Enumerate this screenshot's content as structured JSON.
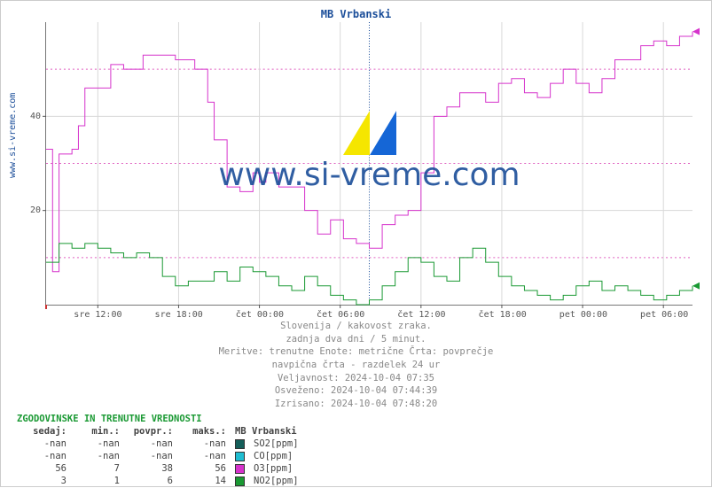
{
  "title": "MB Vrbanski",
  "ylabel": "www.si-vreme.com",
  "watermark_text": "www.si-vreme.com",
  "chart": {
    "type": "line-step",
    "background": "#ffffff",
    "grid_major_color": "#d8d8d8",
    "grid_dash_color": "#e060c0",
    "axis_font_size": 10,
    "axis_color": "#555555",
    "ylim": [
      0,
      60
    ],
    "ytick_major": [
      20,
      40
    ],
    "ytick_dash": [
      10,
      30,
      50
    ],
    "x_labels": [
      "sre 12:00",
      "sre 18:00",
      "čet 00:00",
      "čet 06:00",
      "čet 12:00",
      "čet 18:00",
      "pet 00:00",
      "pet 06:00"
    ],
    "x_positions_pct": [
      8,
      20.5,
      33,
      45.5,
      58,
      70.5,
      83,
      95.5
    ],
    "vline_pct": 50,
    "vline_color": "#1a4d99",
    "series": {
      "o3": {
        "color": "#d633cc",
        "width": 1,
        "points": [
          [
            0,
            33
          ],
          [
            1,
            7
          ],
          [
            2,
            32
          ],
          [
            2.5,
            32
          ],
          [
            4,
            33
          ],
          [
            5,
            38
          ],
          [
            6,
            46
          ],
          [
            9,
            46
          ],
          [
            10,
            51
          ],
          [
            12,
            50
          ],
          [
            15,
            53
          ],
          [
            19,
            53
          ],
          [
            20,
            52
          ],
          [
            22,
            52
          ],
          [
            23,
            50
          ],
          [
            24,
            50
          ],
          [
            25,
            43
          ],
          [
            26,
            35
          ],
          [
            28,
            25
          ],
          [
            30,
            24
          ],
          [
            32,
            28
          ],
          [
            33,
            26
          ],
          [
            34,
            28
          ],
          [
            36,
            25
          ],
          [
            40,
            20
          ],
          [
            42,
            15
          ],
          [
            44,
            18
          ],
          [
            46,
            14
          ],
          [
            48,
            13
          ],
          [
            50,
            12
          ],
          [
            52,
            17
          ],
          [
            54,
            19
          ],
          [
            56,
            20
          ],
          [
            58,
            28
          ],
          [
            60,
            40
          ],
          [
            62,
            42
          ],
          [
            64,
            45
          ],
          [
            66,
            45
          ],
          [
            68,
            43
          ],
          [
            70,
            47
          ],
          [
            72,
            48
          ],
          [
            74,
            45
          ],
          [
            76,
            44
          ],
          [
            78,
            47
          ],
          [
            80,
            50
          ],
          [
            82,
            47
          ],
          [
            84,
            45
          ],
          [
            86,
            48
          ],
          [
            88,
            52
          ],
          [
            90,
            52
          ],
          [
            92,
            55
          ],
          [
            94,
            56
          ],
          [
            96,
            55
          ],
          [
            98,
            57
          ],
          [
            100,
            58
          ]
        ]
      },
      "no2": {
        "color": "#1a9933",
        "width": 1,
        "points": [
          [
            0,
            9
          ],
          [
            2,
            13
          ],
          [
            4,
            12
          ],
          [
            6,
            13
          ],
          [
            8,
            12
          ],
          [
            10,
            11
          ],
          [
            12,
            10
          ],
          [
            14,
            11
          ],
          [
            16,
            10
          ],
          [
            18,
            6
          ],
          [
            20,
            4
          ],
          [
            22,
            5
          ],
          [
            24,
            5
          ],
          [
            26,
            7
          ],
          [
            28,
            5
          ],
          [
            30,
            8
          ],
          [
            32,
            7
          ],
          [
            34,
            6
          ],
          [
            36,
            4
          ],
          [
            38,
            3
          ],
          [
            40,
            6
          ],
          [
            42,
            4
          ],
          [
            44,
            2
          ],
          [
            46,
            1
          ],
          [
            48,
            0
          ],
          [
            50,
            1
          ],
          [
            52,
            4
          ],
          [
            54,
            7
          ],
          [
            56,
            10
          ],
          [
            58,
            9
          ],
          [
            60,
            6
          ],
          [
            62,
            5
          ],
          [
            64,
            10
          ],
          [
            66,
            12
          ],
          [
            68,
            9
          ],
          [
            70,
            6
          ],
          [
            72,
            4
          ],
          [
            74,
            3
          ],
          [
            76,
            2
          ],
          [
            78,
            1
          ],
          [
            80,
            2
          ],
          [
            82,
            4
          ],
          [
            84,
            5
          ],
          [
            86,
            3
          ],
          [
            88,
            4
          ],
          [
            90,
            3
          ],
          [
            92,
            2
          ],
          [
            94,
            1
          ],
          [
            96,
            2
          ],
          [
            98,
            3
          ],
          [
            100,
            4
          ]
        ]
      }
    },
    "arrow_color_right": "#d633cc",
    "arrow_color_right2": "#1a9933"
  },
  "caption": [
    "Slovenija / kakovost zraka.",
    "zadnja dva dni / 5 minut.",
    "Meritve: trenutne  Enote: metrične  Črta: povprečje",
    "navpična črta - razdelek 24 ur",
    "Veljavnost: 2024-10-04 07:35",
    "Osveženo: 2024-10-04 07:44:39",
    "Izrisano: 2024-10-04 07:48:20"
  ],
  "legend": {
    "title": "ZGODOVINSKE IN TRENUTNE VREDNOSTI",
    "columns": [
      "sedaj:",
      "min.:",
      "povpr.:",
      "maks.:",
      "MB Vrbanski"
    ],
    "rows": [
      {
        "vals": [
          "-nan",
          "-nan",
          "-nan",
          "-nan"
        ],
        "swatch": "#155f5a",
        "name": "SO2[ppm]"
      },
      {
        "vals": [
          "-nan",
          "-nan",
          "-nan",
          "-nan"
        ],
        "swatch": "#1fbdd1",
        "name": "CO[ppm]"
      },
      {
        "vals": [
          "56",
          "7",
          "38",
          "56"
        ],
        "swatch": "#d633cc",
        "name": "O3[ppm]"
      },
      {
        "vals": [
          "3",
          "1",
          "6",
          "14"
        ],
        "swatch": "#1a9933",
        "name": "NO2[ppm]"
      }
    ]
  }
}
